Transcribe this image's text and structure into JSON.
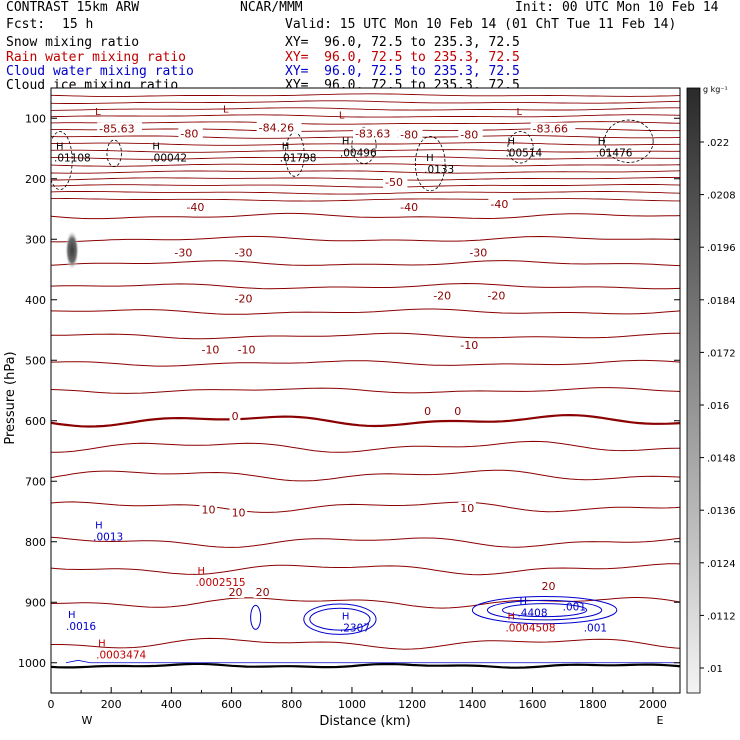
{
  "header": {
    "title": "CONTRAST 15km ARW",
    "center": "NCAR/MMM",
    "init": "Init: 00 UTC Mon 10 Feb 14",
    "fcst_label": "Fcst:",
    "fcst_value": "15 h",
    "valid": "Valid: 15 UTC Mon 10 Feb 14 (01 ChT Tue 11 Feb 14)",
    "fields": [
      {
        "name": "Snow mixing ratio",
        "xy": "XY=  96.0, 72.5 to 235.3, 72.5",
        "color": "#000000"
      },
      {
        "name": "Rain water mixing ratio",
        "xy": "XY=  96.0, 72.5 to 235.3, 72.5",
        "color": "#c00000"
      },
      {
        "name": "Cloud water mixing ratio",
        "xy": "XY=  96.0, 72.5 to 235.3, 72.5",
        "color": "#0000cc"
      },
      {
        "name": "Cloud ice mixing ratio",
        "xy": "XY=  96.0, 72.5 to 235.3, 72.5",
        "color": "#000000"
      }
    ]
  },
  "chart_data": {
    "type": "contour",
    "xlabel": "Distance (km)",
    "ylabel": "Pressure (hPa)",
    "xlim": [
      0,
      2090
    ],
    "ylim": [
      50,
      1050
    ],
    "x_ticks": [
      0,
      200,
      400,
      600,
      800,
      1000,
      1200,
      1400,
      1600,
      1800,
      2000
    ],
    "y_ticks": [
      100,
      200,
      300,
      400,
      500,
      600,
      700,
      800,
      900,
      1000
    ],
    "x_end_labels": {
      "left": "W",
      "right": "E"
    },
    "colorbar": {
      "unit": "g kg⁻¹",
      "ticks": [
        ".022",
        ".0208",
        ".0196",
        ".0184",
        ".0172",
        ".016",
        ".0148",
        ".0136",
        ".0124",
        ".0112",
        ".01"
      ]
    },
    "temperature_labels": [
      {
        "x": 160,
        "p": 122,
        "text": "-85.63"
      },
      {
        "x": 430,
        "p": 130,
        "text": "-80"
      },
      {
        "x": 690,
        "p": 120,
        "text": "-84.26"
      },
      {
        "x": 1010,
        "p": 130,
        "text": "-83.63"
      },
      {
        "x": 1160,
        "p": 132,
        "text": "-80"
      },
      {
        "x": 1360,
        "p": 132,
        "text": "-80"
      },
      {
        "x": 1600,
        "p": 122,
        "text": "-83.66"
      },
      {
        "x": 1110,
        "p": 210,
        "text": "-50"
      },
      {
        "x": 450,
        "p": 252,
        "text": "-40"
      },
      {
        "x": 1160,
        "p": 252,
        "text": "-40"
      },
      {
        "x": 1460,
        "p": 247,
        "text": "-40"
      },
      {
        "x": 410,
        "p": 327,
        "text": "-30"
      },
      {
        "x": 610,
        "p": 327,
        "text": "-30"
      },
      {
        "x": 1390,
        "p": 327,
        "text": "-30"
      },
      {
        "x": 610,
        "p": 403,
        "text": "-20"
      },
      {
        "x": 1270,
        "p": 398,
        "text": "-20"
      },
      {
        "x": 1450,
        "p": 398,
        "text": "-20"
      },
      {
        "x": 500,
        "p": 487,
        "text": "-10"
      },
      {
        "x": 620,
        "p": 487,
        "text": "-10"
      },
      {
        "x": 1360,
        "p": 480,
        "text": "-10"
      },
      {
        "x": 600,
        "p": 597,
        "text": "0"
      },
      {
        "x": 1240,
        "p": 589,
        "text": "0"
      },
      {
        "x": 1340,
        "p": 589,
        "text": "0"
      },
      {
        "x": 500,
        "p": 752,
        "text": "10"
      },
      {
        "x": 600,
        "p": 757,
        "text": "10"
      },
      {
        "x": 1360,
        "p": 749,
        "text": "10"
      },
      {
        "x": 590,
        "p": 888,
        "text": "20"
      },
      {
        "x": 680,
        "p": 888,
        "text": "20"
      },
      {
        "x": 1630,
        "p": 878,
        "text": "20"
      }
    ],
    "extrema_labels": [
      {
        "x": 10,
        "p": 153,
        "mark": "L",
        "text": "",
        "color": "#8b0000",
        "hide": true
      },
      {
        "x": 140,
        "p": 106,
        "mark": "L",
        "text": "",
        "color": "#8b0000"
      },
      {
        "x": 565,
        "p": 102,
        "mark": "L",
        "text": "",
        "color": "#8b0000"
      },
      {
        "x": 950,
        "p": 112,
        "mark": "L",
        "text": "",
        "color": "#8b0000"
      },
      {
        "x": 1540,
        "p": 106,
        "mark": "L",
        "text": "",
        "color": "#8b0000"
      },
      {
        "x": 10,
        "p": 163,
        "mark": "H",
        "text": ".01108",
        "color": "#000000"
      },
      {
        "x": 330,
        "p": 163,
        "mark": "H",
        "text": ".00042",
        "color": "#000000"
      },
      {
        "x": 760,
        "p": 163,
        "mark": "H",
        "text": ".01798",
        "color": "#000000"
      },
      {
        "x": 960,
        "p": 155,
        "mark": "H",
        "text": ".00496",
        "color": "#000000"
      },
      {
        "x": 1240,
        "p": 182,
        "mark": "H",
        "text": ".0133",
        "color": "#000000"
      },
      {
        "x": 1510,
        "p": 155,
        "mark": "H",
        "text": ".00514",
        "color": "#000000"
      },
      {
        "x": 1810,
        "p": 155,
        "mark": "H",
        "text": ".01476",
        "color": "#000000"
      },
      {
        "x": 140,
        "p": 790,
        "mark": "H",
        "text": ".0013",
        "color": "#0000cc"
      },
      {
        "x": 50,
        "p": 938,
        "mark": "H",
        "text": ".0016",
        "color": "#0000cc"
      },
      {
        "x": 960,
        "p": 940,
        "mark": "H",
        "text": ".2307",
        "color": "#0000cc"
      },
      {
        "x": 1550,
        "p": 915,
        "mark": "H",
        "text": ".4408",
        "color": "#0000cc"
      },
      {
        "x": 1700,
        "p": 905,
        "mark": "",
        "text": ".001",
        "color": "#0000cc"
      },
      {
        "x": 1770,
        "p": 940,
        "mark": "",
        "text": ".001",
        "color": "#0000cc"
      },
      {
        "x": 480,
        "p": 865,
        "mark": "H",
        "text": ".0002515",
        "color": "#c00000"
      },
      {
        "x": 150,
        "p": 985,
        "mark": "H",
        "text": ".0003474",
        "color": "#c00000"
      },
      {
        "x": 1510,
        "p": 940,
        "mark": "H",
        "text": ".0004508",
        "color": "#c00000"
      }
    ]
  }
}
